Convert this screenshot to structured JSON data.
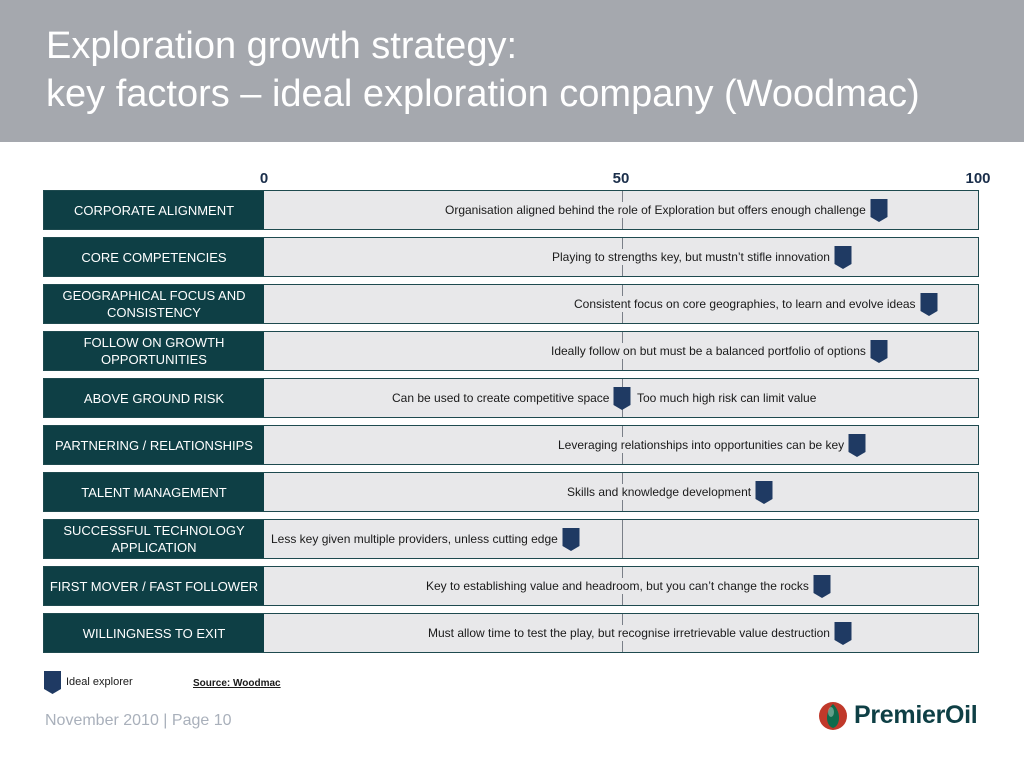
{
  "title": {
    "line1": "Exploration growth strategy:",
    "line2": "key factors – ideal exploration company (Woodmac)"
  },
  "scale": {
    "min": "0",
    "mid": "50",
    "max": "100"
  },
  "colors": {
    "label_bg": "#0e3f45",
    "marker": "#1f3a63",
    "header_bg": "#a5a8ae",
    "track_bg": "#e8e8ea"
  },
  "chart_data": {
    "type": "table",
    "x_range": [
      0,
      100
    ],
    "rows": [
      {
        "label": "CORPORATE ALIGNMENT",
        "text": "Organisation aligned behind the role of Exploration but offers enough challenge",
        "value": 86
      },
      {
        "label": "CORE COMPETENCIES",
        "text": "Playing to strengths key, but mustn’t stifle innovation",
        "value": 81
      },
      {
        "label": "GEOGRAPHICAL FOCUS AND CONSISTENCY",
        "text": "Consistent focus on core geographies, to learn and evolve ideas",
        "value": 93
      },
      {
        "label": "FOLLOW ON GROWTH OPPORTUNITIES",
        "text": "Ideally follow on but must be a balanced portfolio of options",
        "value": 86
      },
      {
        "label": "ABOVE GROUND RISK",
        "text": "Can be used to create competitive space",
        "text_right": "Too much high risk can limit value",
        "value": 50
      },
      {
        "label": "PARTNERING / RELATIONSHIPS",
        "text": "Leveraging relationships into opportunities can be key",
        "value": 83
      },
      {
        "label": "TALENT MANAGEMENT",
        "text": "Skills and knowledge development",
        "value": 70
      },
      {
        "label": "SUCCESSFUL TECHNOLOGY APPLICATION",
        "text": "Less key given multiple providers, unless cutting edge",
        "value": 43
      },
      {
        "label": "FIRST MOVER / FAST FOLLOWER",
        "text": "Key to establishing value and headroom, but you can’t change the rocks",
        "value": 78
      },
      {
        "label": "WILLINGNESS TO EXIT",
        "text": "Must allow time to test the play, but recognise irretrievable value destruction",
        "value": 81
      }
    ]
  },
  "legend": {
    "marker_icon": "pentagon-marker-icon",
    "label": "Ideal explorer"
  },
  "source": "Source: Woodmac",
  "footer": "November 2010 | Page 10",
  "logo": {
    "text": "PremierOil"
  }
}
